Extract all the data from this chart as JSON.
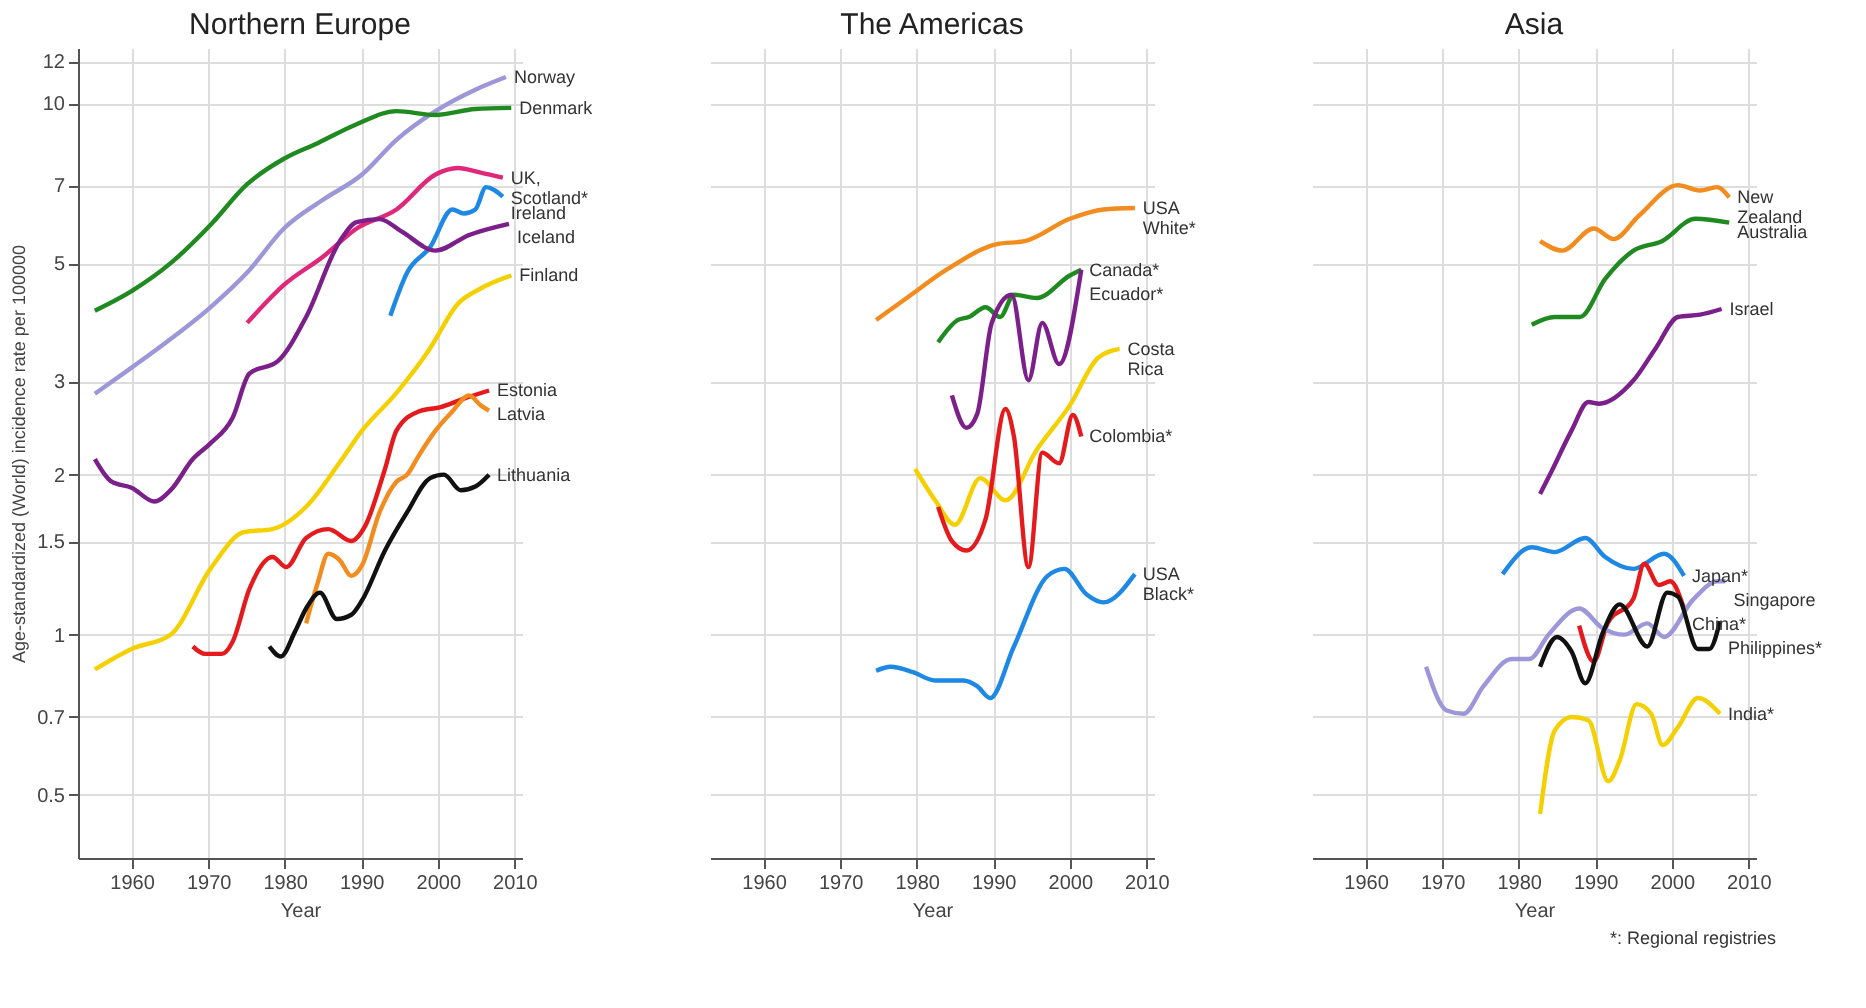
{
  "chart_data": [
    {
      "type": "line",
      "title": "Northern Europe",
      "xlabel": "Year",
      "ylabel": "Age-standardized (World) incidence rate per 100000",
      "log": true,
      "grid": true,
      "legend": false,
      "marker": "none",
      "line_style": "solid",
      "xlim": [
        1953,
        2011
      ],
      "xticks": [
        1960,
        1970,
        1980,
        1990,
        2000,
        2010
      ],
      "ylim": [
        0.38,
        12.7
      ],
      "yticks": [
        0.5,
        0.7,
        1,
        1.5,
        2,
        3,
        5,
        7,
        10,
        12
      ],
      "series": [
        {
          "name": "Norway",
          "color": "#9b97d8",
          "x": [
            1955.2,
            1960,
            1965.1,
            1970.3,
            1975.1,
            1979.9,
            1985,
            1990.1,
            1994.6,
            1999.7,
            2004.9,
            2008.9
          ],
          "values": [
            2.84,
            3.18,
            3.6,
            4.13,
            4.8,
            5.81,
            6.58,
            7.34,
            8.53,
            9.66,
            10.6,
            11.2
          ]
        },
        {
          "name": "Denmark",
          "color": "#1f8a1f",
          "x": [
            1955.2,
            1960,
            1965.1,
            1970.3,
            1975.1,
            1979.9,
            1984.3,
            1989.4,
            1994.6,
            1999.7,
            2004.9,
            2009.6
          ],
          "values": [
            4.07,
            4.43,
            5.0,
            5.9,
            7.04,
            7.86,
            8.41,
            9.13,
            9.66,
            9.5,
            9.75,
            9.8
          ]
        },
        {
          "name": "UK,\nScotland*",
          "color": "#e0287a",
          "x": [
            1975.1,
            1979.9,
            1985,
            1989.4,
            1994.6,
            1999.7,
            2002.6,
            2005.6,
            2008.5
          ],
          "values": [
            3.86,
            4.55,
            5.14,
            5.81,
            6.31,
            7.34,
            7.55,
            7.4,
            7.24
          ]
        },
        {
          "name": "Ireland",
          "color": "#1e88e5",
          "x": [
            1993.8,
            1996,
            1999,
            2001.9,
            2003.4,
            2004.9,
            2006.3,
            2008.5
          ],
          "values": [
            3.98,
            4.8,
            5.36,
            6.31,
            6.2,
            6.31,
            6.95,
            6.67
          ]
        },
        {
          "name": "Iceland",
          "color": "#7b1f8a",
          "x": [
            1955.2,
            1957.4,
            1960,
            1963,
            1965.1,
            1968,
            1970.3,
            1973.2,
            1975.4,
            1979.1,
            1982.8,
            1987.2,
            1989.4,
            1992.4,
            1995.3,
            1999.7,
            2004.1,
            2009.3
          ],
          "values": [
            2.14,
            1.94,
            1.89,
            1.78,
            1.87,
            2.14,
            2.29,
            2.56,
            3.1,
            3.27,
            3.96,
            5.5,
            5.97,
            6.05,
            5.73,
            5.28,
            5.65,
            5.93
          ]
        },
        {
          "name": "Finland",
          "color": "#f5d000",
          "x": [
            1955.2,
            1960,
            1965.1,
            1970.3,
            1974.7,
            1978.4,
            1982.8,
            1987.2,
            1990.1,
            1994.6,
            1999,
            2002.6,
            2005.6,
            2009.6
          ],
          "values": [
            0.86,
            0.94,
            1.0,
            1.33,
            1.56,
            1.58,
            1.74,
            2.11,
            2.42,
            2.85,
            3.46,
            4.19,
            4.48,
            4.74
          ]
        },
        {
          "name": "Estonia",
          "color": "#e41a1c",
          "x": [
            1968,
            1969.6,
            1971.8,
            1973.2,
            1975.4,
            1978.4,
            1980.2,
            1982.8,
            1985.7,
            1988.7,
            1990.5,
            1993.1,
            1994.6,
            1997.5,
            2000.4,
            2003.4,
            2006.7
          ],
          "values": [
            0.95,
            0.92,
            0.92,
            0.97,
            1.22,
            1.4,
            1.34,
            1.52,
            1.58,
            1.5,
            1.6,
            2.05,
            2.42,
            2.63,
            2.68,
            2.78,
            2.88
          ]
        },
        {
          "name": "Latvia",
          "color": "#f28c1e",
          "x": [
            1982.8,
            1984.3,
            1985.7,
            1987.2,
            1988.7,
            1990.1,
            1992.4,
            1994.6,
            1996,
            1997.5,
            1999.7,
            2001.9,
            2004.1,
            2005.6,
            2006.7
          ],
          "values": [
            1.05,
            1.25,
            1.42,
            1.38,
            1.29,
            1.35,
            1.7,
            1.94,
            2.0,
            2.17,
            2.42,
            2.63,
            2.82,
            2.7,
            2.64
          ]
        },
        {
          "name": "Lithuania",
          "color": "#111111",
          "x": [
            1978,
            1979.5,
            1981.3,
            1982.8,
            1984.6,
            1986.8,
            1988.7,
            1990.1,
            1993.1,
            1996,
            1999,
            2000.8,
            2003,
            2004.9,
            2006.7
          ],
          "values": [
            0.95,
            0.91,
            1.01,
            1.12,
            1.2,
            1.07,
            1.09,
            1.16,
            1.44,
            1.7,
            1.97,
            2.0,
            1.87,
            1.9,
            2.0
          ]
        }
      ]
    },
    {
      "type": "line",
      "title": "The Americas",
      "xlabel": "Year",
      "log": true,
      "grid": true,
      "legend": false,
      "marker": "none",
      "line_style": "solid",
      "tick_labels": "x",
      "xlim": [
        1953,
        2011
      ],
      "xticks": [
        1960,
        1970,
        1980,
        1990,
        2000,
        2010
      ],
      "ylim": [
        0.38,
        12.7
      ],
      "yticks": [
        0.5,
        0.7,
        1,
        1.5,
        2,
        3,
        5,
        7,
        10,
        12
      ],
      "series": [
        {
          "name": "USA\nWhite*",
          "color": "#f28c1e",
          "x": [
            1974.7,
            1978.7,
            1983.9,
            1990.5,
            1994.1,
            2000,
            2004.4,
            2008.5
          ],
          "values": [
            3.91,
            4.3,
            4.86,
            5.43,
            5.5,
            6.06,
            6.31,
            6.35
          ]
        },
        {
          "name": "Canada*",
          "color": "#1f8a1f",
          "x": [
            1982.8,
            1985.4,
            1986.8,
            1989,
            1990.9,
            1992.7,
            1995.7,
            2000,
            2001.5
          ],
          "values": [
            3.55,
            3.91,
            3.96,
            4.13,
            3.96,
            4.36,
            4.3,
            4.74,
            4.86
          ]
        },
        {
          "name": "Ecuador*",
          "color": "#7b1f8a",
          "x": [
            1984.6,
            1986.5,
            1987.9,
            1989.8,
            1992.4,
            1994.6,
            1996.4,
            1998.6,
            2001.5
          ],
          "values": [
            2.82,
            2.45,
            2.6,
            3.86,
            4.36,
            3.01,
            3.86,
            3.23,
            4.86
          ]
        },
        {
          "name": "Costa\nRica",
          "color": "#f5d000",
          "x": [
            1979.8,
            1982.4,
            1985,
            1988.3,
            1991.6,
            1995.7,
            2000,
            2003.7,
            2006.5
          ],
          "values": [
            2.05,
            1.79,
            1.61,
            1.97,
            1.79,
            2.23,
            2.7,
            3.32,
            3.45
          ]
        },
        {
          "name": "Colombia*",
          "color": "#e41a1c",
          "x": [
            1982.8,
            1984.6,
            1986.5,
            1989,
            1991.6,
            1992.7,
            1994.6,
            1996.4,
            1998.6,
            2000.4,
            2001.5
          ],
          "values": [
            1.74,
            1.5,
            1.44,
            1.65,
            2.66,
            2.36,
            1.34,
            2.2,
            2.1,
            2.59,
            2.36
          ]
        },
        {
          "name": "USA\nBlack*",
          "color": "#1e88e5",
          "x": [
            1974.7,
            1976.6,
            1979.5,
            1982.4,
            1986.1,
            1987.9,
            1989.6,
            1992.7,
            1997.1,
            1999.3,
            2002.2,
            2004.4,
            2008.5
          ],
          "values": [
            0.855,
            0.87,
            0.85,
            0.82,
            0.82,
            0.8,
            0.76,
            0.95,
            1.29,
            1.33,
            1.19,
            1.15,
            1.3
          ]
        }
      ]
    },
    {
      "type": "line",
      "title": "Asia",
      "xlabel": "Year",
      "log": true,
      "grid": true,
      "legend": false,
      "marker": "none",
      "line_style": "solid",
      "tick_labels": "x",
      "annotations": [
        "*: Regional registries"
      ],
      "xlim": [
        1953,
        2011
      ],
      "xticks": [
        1960,
        1970,
        1980,
        1990,
        2000,
        2010
      ],
      "ylim": [
        0.38,
        12.7
      ],
      "yticks": [
        0.5,
        0.7,
        1,
        1.5,
        2,
        3,
        5,
        7,
        10,
        12
      ],
      "series": [
        {
          "name": "New\nZealand",
          "color": "#f28c1e",
          "x": [
            1982.8,
            1985.7,
            1989.8,
            1992.4,
            1995.7,
            2000.8,
            2003.7,
            2005.9,
            2007.5
          ],
          "values": [
            5.5,
            5.28,
            5.81,
            5.55,
            6.14,
            7.01,
            6.85,
            6.95,
            6.65
          ]
        },
        {
          "name": "Australia",
          "color": "#1f8a1f",
          "x": [
            1981.7,
            1984.7,
            1988,
            1991.3,
            1995,
            1998.7,
            2003.1,
            2007.5
          ],
          "values": [
            3.83,
            3.96,
            3.96,
            4.67,
            5.28,
            5.5,
            6.06,
            5.96
          ]
        },
        {
          "name": "Israel",
          "color": "#7b1f8a",
          "x": [
            1982.8,
            1984.3,
            1986.9,
            1989.1,
            1990.5,
            1995,
            1997.9,
            2000.8,
            2003.7,
            2006.5
          ],
          "values": [
            1.84,
            2.03,
            2.42,
            2.74,
            2.72,
            3.01,
            3.46,
            3.96,
            4.0,
            4.1
          ]
        },
        {
          "name": "Japan*",
          "color": "#1e88e5",
          "x": [
            1977.9,
            1981.7,
            1984.7,
            1988.7,
            1991.3,
            1995,
            1999,
            2001.6
          ],
          "values": [
            1.3,
            1.46,
            1.43,
            1.52,
            1.4,
            1.33,
            1.42,
            1.29
          ]
        },
        {
          "name": "China*",
          "color": "#e41a1c",
          "x": [
            1987.9,
            1989.8,
            1991.6,
            1995,
            1996.4,
            1998.3,
            1999.8,
            2001.6
          ],
          "values": [
            1.04,
            0.89,
            1.05,
            1.17,
            1.36,
            1.24,
            1.26,
            1.12
          ]
        },
        {
          "name": "Singapore",
          "color": "#9b97d8",
          "x": [
            1967.9,
            1970.6,
            1972.8,
            1975.4,
            1979.1,
            1981.4,
            1983.9,
            1987.9,
            1990.9,
            1993.8,
            1996.8,
            1999,
            2002.7,
            2006,
            2007
          ],
          "values": [
            0.87,
            0.72,
            0.71,
            0.8,
            0.9,
            0.9,
            1.0,
            1.12,
            1.03,
            1.0,
            1.05,
            0.99,
            1.16,
            1.26,
            1.26
          ]
        },
        {
          "name": "Philippines*",
          "color": "#111111",
          "x": [
            1982.8,
            1985,
            1986.9,
            1988.7,
            1991,
            1993.2,
            1996.8,
            1999.4,
            2000.8,
            2003.4,
            2004.9,
            2006.3
          ],
          "values": [
            0.87,
            0.99,
            0.93,
            0.81,
            1.01,
            1.14,
            0.95,
            1.2,
            1.18,
            0.94,
            0.94,
            1.06
          ]
        },
        {
          "name": "India*",
          "color": "#f5d000",
          "x": [
            1982.8,
            1984.7,
            1986.9,
            1989.1,
            1991.7,
            1993.2,
            1995.4,
            1997.3,
            1998.8,
            2000.8,
            2003.4,
            2006.3
          ],
          "values": [
            0.46,
            0.66,
            0.7,
            0.69,
            0.53,
            0.58,
            0.74,
            0.71,
            0.62,
            0.67,
            0.76,
            0.71
          ]
        }
      ]
    }
  ]
}
